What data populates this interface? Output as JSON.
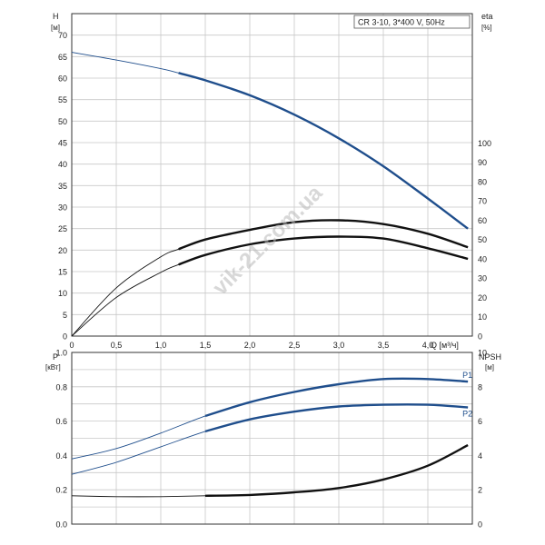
{
  "colors": {
    "blue": "#1f4e8c",
    "black": "#111111",
    "grid": "#c8c8c8"
  },
  "chart_data": [
    {
      "type": "line",
      "title": "CR 3-10, 3*400 V, 50Hz",
      "xlabel": "Q [м³/ч]",
      "ylabel": "H",
      "ylabel_unit": "[м]",
      "y2label": "eta",
      "y2label_unit": "[%]",
      "xlim": [
        0,
        4.5
      ],
      "ylim": [
        0,
        75
      ],
      "y2lim": [
        0,
        167
      ],
      "x_ticks": [
        "0",
        "0,5",
        "1,0",
        "1,5",
        "2,0",
        "2,5",
        "3,0",
        "3,5",
        "4,0"
      ],
      "y_ticks": [
        "0",
        "5",
        "10",
        "15",
        "20",
        "25",
        "30",
        "35",
        "40",
        "45",
        "50",
        "55",
        "60",
        "65",
        "70"
      ],
      "y2_ticks": [
        "0",
        "10",
        "20",
        "30",
        "40",
        "50",
        "60",
        "70",
        "80",
        "90",
        "100"
      ],
      "watermark": "vik-21.com.ua",
      "series": [
        {
          "axis": "left",
          "color": "#1f4e8c",
          "x": [
            0,
            0.5,
            1.0,
            1.2,
            1.5,
            2.0,
            2.5,
            3.0,
            3.5,
            4.0,
            4.45
          ],
          "y": [
            66,
            64.2,
            62.2,
            61.2,
            59.5,
            56,
            51.5,
            46,
            39.5,
            32,
            25
          ]
        },
        {
          "axis": "right",
          "color": "#111111",
          "x": [
            0,
            0.5,
            1.0,
            1.2,
            1.5,
            2.0,
            2.5,
            3.0,
            3.5,
            4.0,
            4.45
          ],
          "y": [
            0,
            25,
            41,
            45,
            50,
            55,
            59,
            60,
            58,
            53,
            46
          ]
        },
        {
          "axis": "right",
          "color": "#111111",
          "x": [
            0,
            0.5,
            1.0,
            1.2,
            1.5,
            2.0,
            2.5,
            3.0,
            3.5,
            4.0,
            4.45
          ],
          "y": [
            0,
            20,
            33,
            37,
            42,
            47.5,
            50.5,
            51.5,
            50.5,
            45.5,
            40
          ]
        }
      ]
    },
    {
      "type": "line",
      "ylabel": "P",
      "ylabel_unit": "[кВт]",
      "y2label": "NPSH",
      "y2label_unit": "[м]",
      "xlim": [
        0,
        4.5
      ],
      "ylim": [
        0,
        1.0
      ],
      "y2lim": [
        0,
        10
      ],
      "y_ticks": [
        "0.0",
        "0.2",
        "0.4",
        "0.6",
        "0.8",
        "1.0"
      ],
      "y2_ticks": [
        "0",
        "2",
        "4",
        "6",
        "8",
        "10"
      ],
      "series": [
        {
          "name": "P1",
          "axis": "left",
          "color": "#1f4e8c",
          "x": [
            0,
            0.5,
            1.0,
            1.5,
            2.0,
            2.5,
            3.0,
            3.5,
            4.0,
            4.45
          ],
          "y": [
            0.38,
            0.44,
            0.53,
            0.63,
            0.71,
            0.77,
            0.815,
            0.845,
            0.845,
            0.83
          ]
        },
        {
          "name": "P2",
          "axis": "left",
          "color": "#1f4e8c",
          "x": [
            0,
            0.5,
            1.0,
            1.5,
            2.0,
            2.5,
            3.0,
            3.5,
            4.0,
            4.45
          ],
          "y": [
            0.29,
            0.36,
            0.45,
            0.54,
            0.61,
            0.655,
            0.685,
            0.695,
            0.695,
            0.68
          ]
        },
        {
          "axis": "right",
          "color": "#111111",
          "x": [
            0,
            0.5,
            1.0,
            1.5,
            2.0,
            2.5,
            3.0,
            3.5,
            4.0,
            4.45
          ],
          "y": [
            1.65,
            1.6,
            1.6,
            1.65,
            1.7,
            1.85,
            2.1,
            2.6,
            3.4,
            4.6
          ]
        }
      ]
    }
  ]
}
